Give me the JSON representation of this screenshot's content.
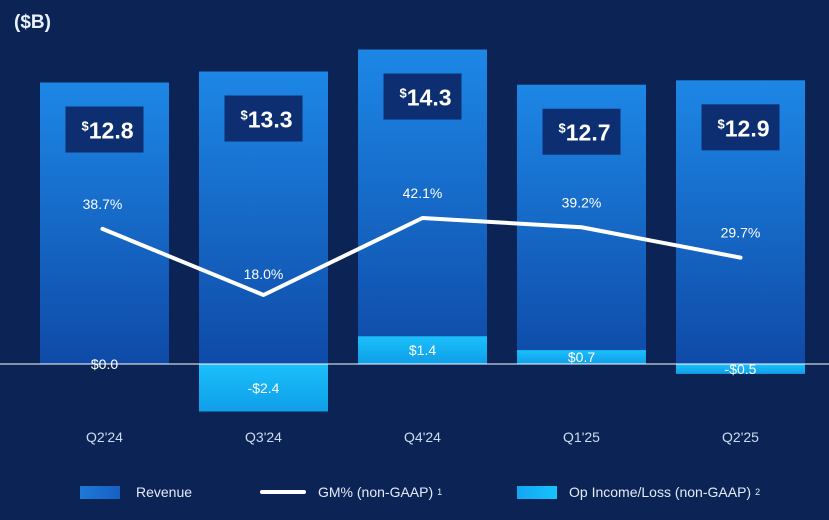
{
  "unit_label": "($B)",
  "chart_data": {
    "type": "bar",
    "categories": [
      "Q2'24",
      "Q3'24",
      "Q4'24",
      "Q1'25",
      "Q2'25"
    ],
    "series": [
      {
        "name": "Revenue",
        "kind": "bar",
        "values": [
          12.8,
          13.3,
          14.3,
          12.7,
          12.9
        ],
        "labels": [
          "12.8",
          "13.3",
          "14.3",
          "12.7",
          "12.9"
        ],
        "currency_prefix": "$"
      },
      {
        "name": "GM% (non-GAAP)",
        "footnote": "1",
        "kind": "line",
        "values": [
          38.7,
          18.0,
          42.1,
          39.2,
          29.7
        ],
        "labels": [
          "38.7%",
          "18.0%",
          "42.1%",
          "39.2%",
          "29.7%"
        ]
      },
      {
        "name": "Op Income/Loss (non-GAAP)",
        "footnote": "2",
        "kind": "bar",
        "values": [
          0.0,
          -2.4,
          1.4,
          0.7,
          -0.5
        ],
        "labels": [
          "$0.0",
          "-$2.4",
          "$1.4",
          "$0.7",
          "-$0.5"
        ]
      }
    ],
    "legend_position": "bottom",
    "grid": false,
    "colors": {
      "background": "#0b2455",
      "revenue_top": "#1d87e6",
      "revenue_bottom": "#0f4aa7",
      "revenue_label_box": "#0d2f72",
      "op_income": "#16b4f7",
      "gm_line": "#ffffff",
      "baseline": "#ffffff"
    }
  }
}
